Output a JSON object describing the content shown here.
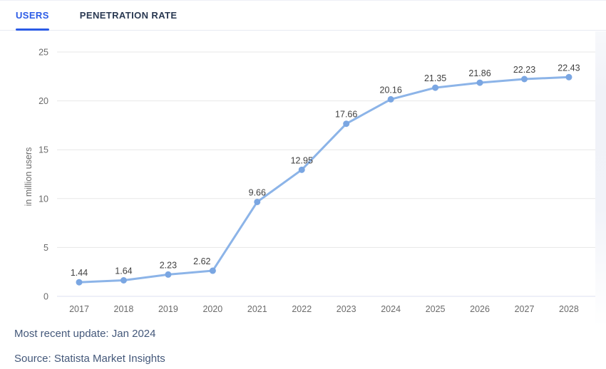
{
  "tabs": [
    {
      "label": "USERS",
      "active": true
    },
    {
      "label": "PENETRATION RATE",
      "active": false
    }
  ],
  "chart_data": {
    "type": "line",
    "x": [
      2017,
      2018,
      2019,
      2020,
      2021,
      2022,
      2023,
      2024,
      2025,
      2026,
      2027,
      2028
    ],
    "series": [
      {
        "name": "Users",
        "values": [
          1.44,
          1.64,
          2.23,
          2.62,
          9.66,
          12.95,
          17.66,
          20.16,
          21.35,
          21.86,
          22.23,
          22.43
        ]
      }
    ],
    "title": "",
    "xlabel": "",
    "ylabel": "in million users",
    "ylim": [
      0,
      25
    ],
    "yticks": [
      0,
      5,
      10,
      15,
      20,
      25
    ],
    "grid": true,
    "legend": "none",
    "data_labels": true,
    "label_offsets": {
      "2020": -15
    },
    "line_color": "#8cb4e8",
    "marker_color": "#7aa6e2",
    "grid_color": "#e7e7e7",
    "zero_line_color": "#dce1f1"
  },
  "footer": {
    "update": "Most recent update: Jan 2024",
    "source": "Source: Statista Market Insights"
  },
  "colors": {
    "accent": "#2b5be6",
    "inactive_tab": "#2a3952",
    "footer_text": "#44587a"
  }
}
